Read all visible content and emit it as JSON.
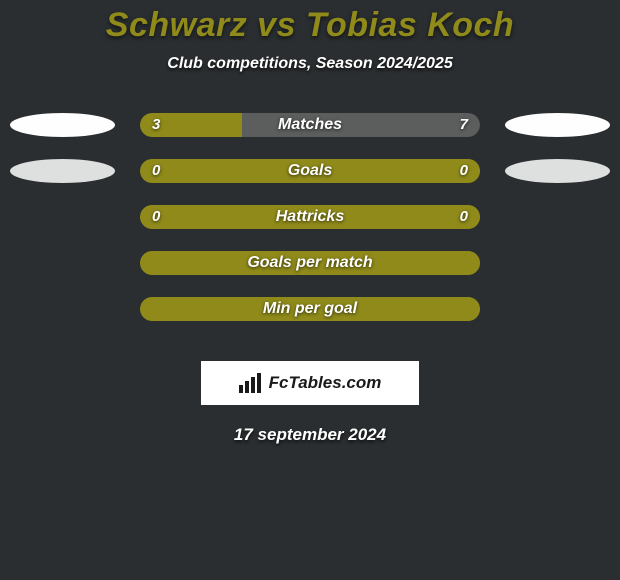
{
  "title": "Schwarz vs Tobias Koch",
  "subtitle": "Club competitions, Season 2024/2025",
  "date": "17 september 2024",
  "colors": {
    "background": "#2a2e30",
    "title": "#8f8a1a",
    "text": "#ffffff",
    "oval": "#fefefe",
    "bar_primary": "#8f8a1a",
    "bar_secondary": "#5c5d5d"
  },
  "rows": [
    {
      "label": "Matches",
      "left_value": "3",
      "right_value": "7",
      "fill_pct": 30,
      "fill_color": "#8f8a1a",
      "bg_color": "#5c5d5d",
      "show_left_oval": true,
      "show_right_oval": true,
      "oval_faded": false
    },
    {
      "label": "Goals",
      "left_value": "0",
      "right_value": "0",
      "fill_pct": 100,
      "fill_color": "#8f8a1a",
      "bg_color": "#8f8a1a",
      "show_left_oval": true,
      "show_right_oval": true,
      "oval_faded": true
    },
    {
      "label": "Hattricks",
      "left_value": "0",
      "right_value": "0",
      "fill_pct": 100,
      "fill_color": "#8f8a1a",
      "bg_color": "#8f8a1a",
      "show_left_oval": false,
      "show_right_oval": false,
      "oval_faded": false
    },
    {
      "label": "Goals per match",
      "left_value": "",
      "right_value": "",
      "fill_pct": 100,
      "fill_color": "#8f8a1a",
      "bg_color": "#8f8a1a",
      "show_left_oval": false,
      "show_right_oval": false,
      "oval_faded": false
    },
    {
      "label": "Min per goal",
      "left_value": "",
      "right_value": "",
      "fill_pct": 100,
      "fill_color": "#8f8a1a",
      "bg_color": "#8f8a1a",
      "show_left_oval": false,
      "show_right_oval": false,
      "oval_faded": false
    }
  ],
  "logo": {
    "text": "FcTables.com",
    "icon_name": "bars-chart-icon"
  }
}
